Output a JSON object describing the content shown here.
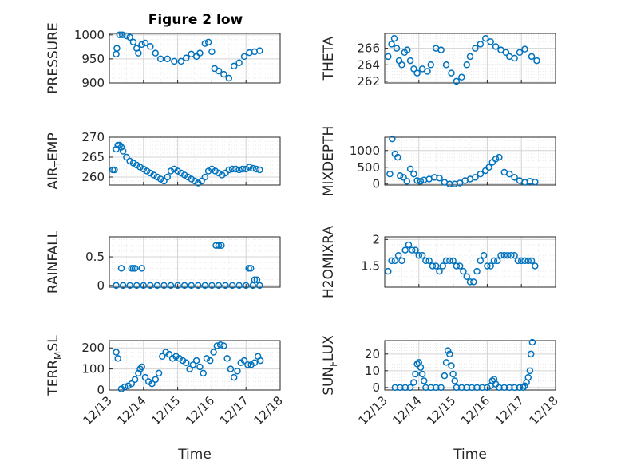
{
  "figure_title": "Figure 2 low",
  "colors": {
    "marker": "#0072BD",
    "axes": "#262626",
    "grid": "#d4d4d4",
    "background": "#ffffff"
  },
  "chart_data": [
    {
      "type": "scatter",
      "ylabel": "PRESSURE",
      "ylim": [
        900,
        1003
      ],
      "yticks": [
        900,
        950,
        1000
      ],
      "xlim": [
        0,
        5
      ],
      "xticks": [],
      "grid": true,
      "marker": "circle",
      "x": [
        0.2,
        0.22,
        0.3,
        0.38,
        0.5,
        0.6,
        0.7,
        0.8,
        0.85,
        0.95,
        1.05,
        1.2,
        1.35,
        1.5,
        1.7,
        1.9,
        2.1,
        2.25,
        2.4,
        2.55,
        2.65,
        2.8,
        2.9,
        3.0,
        3.08,
        3.2,
        3.35,
        3.5,
        3.65,
        3.8,
        3.95,
        4.1,
        4.25,
        4.4
      ],
      "y": [
        960,
        972,
        1000,
        1000,
        998,
        995,
        985,
        972,
        962,
        980,
        983,
        976,
        962,
        950,
        950,
        945,
        945,
        952,
        960,
        955,
        962,
        982,
        985,
        965,
        930,
        925,
        918,
        910,
        935,
        942,
        955,
        963,
        965,
        967
      ]
    },
    {
      "type": "scatter",
      "ylabel": "THETA",
      "ylim": [
        261.8,
        267.8
      ],
      "yticks": [
        262,
        264,
        266
      ],
      "xlim": [
        0,
        5
      ],
      "xticks": [],
      "grid": true,
      "marker": "circle",
      "x": [
        0.1,
        0.2,
        0.28,
        0.35,
        0.42,
        0.5,
        0.58,
        0.66,
        0.75,
        0.85,
        0.95,
        1.1,
        1.25,
        1.35,
        1.5,
        1.65,
        1.8,
        1.95,
        2.1,
        2.25,
        2.4,
        2.5,
        2.65,
        2.8,
        2.95,
        3.1,
        3.25,
        3.4,
        3.55,
        3.65,
        3.8,
        3.95,
        4.1,
        4.3,
        4.45
      ],
      "y": [
        265,
        266.5,
        267.2,
        266,
        264.5,
        264,
        265.5,
        265.8,
        264.5,
        263.5,
        263,
        263.5,
        263.2,
        264,
        266,
        265.8,
        264,
        263,
        262,
        262.5,
        264,
        265,
        266,
        266.5,
        267.2,
        266.8,
        266.2,
        265.8,
        265.5,
        265,
        264.8,
        265.5,
        265.9,
        265,
        264.5
      ]
    },
    {
      "type": "scatter",
      "ylabel": "AIR_TEMP",
      "ylim": [
        258,
        270
      ],
      "yticks": [
        260,
        265,
        270
      ],
      "xlim": [
        0,
        5
      ],
      "xticks": [],
      "grid": true,
      "marker": "circle",
      "x": [
        0.1,
        0.15,
        0.2,
        0.25,
        0.3,
        0.35,
        0.4,
        0.5,
        0.6,
        0.7,
        0.8,
        0.9,
        1.0,
        1.1,
        1.2,
        1.3,
        1.4,
        1.5,
        1.6,
        1.7,
        1.8,
        1.9,
        2.0,
        2.1,
        2.2,
        2.3,
        2.4,
        2.5,
        2.6,
        2.7,
        2.8,
        2.9,
        3.0,
        3.1,
        3.2,
        3.3,
        3.4,
        3.5,
        3.6,
        3.7,
        3.8,
        3.9,
        4.0,
        4.1,
        4.2,
        4.3,
        4.4
      ],
      "y": [
        261.8,
        261.8,
        267,
        268,
        268,
        267.5,
        266.5,
        265,
        264,
        263.5,
        263,
        262.5,
        262,
        261.5,
        261,
        260.5,
        260,
        259.5,
        259,
        260,
        261.5,
        262,
        261.5,
        261,
        260.5,
        260,
        259.5,
        259,
        258.5,
        259,
        260,
        261.5,
        262,
        261.5,
        261,
        260.5,
        261,
        261.8,
        262,
        262,
        261.8,
        262,
        262,
        262.5,
        262.2,
        262,
        261.8
      ]
    },
    {
      "type": "scatter",
      "ylabel": "MIXDEPTH",
      "ylim": [
        -30,
        1400
      ],
      "yticks": [
        0,
        500,
        1000
      ],
      "xlim": [
        0,
        5
      ],
      "xticks": [],
      "grid": true,
      "marker": "circle",
      "x": [
        0.15,
        0.22,
        0.3,
        0.38,
        0.45,
        0.55,
        0.65,
        0.75,
        0.85,
        0.95,
        1.05,
        1.15,
        1.3,
        1.45,
        1.6,
        1.75,
        1.9,
        2.05,
        2.2,
        2.35,
        2.5,
        2.65,
        2.8,
        2.95,
        3.05,
        3.15,
        3.25,
        3.35,
        3.5,
        3.65,
        3.8,
        3.95,
        4.1,
        4.25,
        4.4
      ],
      "y": [
        300,
        1350,
        900,
        800,
        250,
        200,
        80,
        450,
        300,
        100,
        80,
        120,
        150,
        200,
        180,
        50,
        0,
        0,
        30,
        100,
        150,
        200,
        300,
        400,
        500,
        650,
        750,
        800,
        350,
        300,
        200,
        100,
        50,
        80,
        60
      ]
    },
    {
      "type": "scatter",
      "ylabel": "RAINFALL",
      "ylim": [
        -0.03,
        0.85
      ],
      "yticks": [
        0,
        0.5
      ],
      "xlim": [
        0,
        5
      ],
      "xticks": [],
      "grid": true,
      "marker": "circle",
      "x": [
        0.2,
        0.4,
        0.6,
        0.8,
        1.0,
        1.2,
        1.4,
        1.6,
        1.8,
        2.0,
        2.2,
        2.4,
        2.6,
        2.8,
        3.0,
        3.2,
        3.4,
        3.6,
        3.8,
        4.0,
        4.2,
        4.4,
        0.35,
        0.65,
        0.7,
        0.75,
        0.95,
        3.12,
        3.2,
        3.28,
        4.08,
        4.14,
        4.25,
        4.32
      ],
      "y": [
        0,
        0,
        0,
        0,
        0,
        0,
        0,
        0,
        0,
        0,
        0,
        0,
        0,
        0,
        0,
        0,
        0,
        0,
        0,
        0,
        0,
        0,
        0.3,
        0.3,
        0.3,
        0.3,
        0.3,
        0.7,
        0.7,
        0.7,
        0.3,
        0.3,
        0.1,
        0.1
      ]
    },
    {
      "type": "scatter",
      "ylabel": "H2OMIXRA",
      "ylim": [
        1.1,
        2.05
      ],
      "yticks": [
        1.5,
        2
      ],
      "xlim": [
        0,
        5
      ],
      "xticks": [],
      "grid": true,
      "marker": "circle",
      "x": [
        0.1,
        0.2,
        0.3,
        0.4,
        0.5,
        0.6,
        0.7,
        0.8,
        0.9,
        1.0,
        1.1,
        1.2,
        1.3,
        1.4,
        1.5,
        1.6,
        1.7,
        1.8,
        1.9,
        2.0,
        2.1,
        2.2,
        2.3,
        2.4,
        2.5,
        2.6,
        2.7,
        2.8,
        2.9,
        3.0,
        3.1,
        3.2,
        3.3,
        3.4,
        3.5,
        3.6,
        3.7,
        3.8,
        3.9,
        4.0,
        4.1,
        4.2,
        4.3,
        4.4
      ],
      "y": [
        1.4,
        1.6,
        1.6,
        1.7,
        1.6,
        1.8,
        1.9,
        1.8,
        1.8,
        1.7,
        1.7,
        1.6,
        1.6,
        1.5,
        1.5,
        1.4,
        1.5,
        1.6,
        1.6,
        1.6,
        1.5,
        1.5,
        1.4,
        1.3,
        1.2,
        1.2,
        1.4,
        1.6,
        1.7,
        1.5,
        1.5,
        1.6,
        1.6,
        1.7,
        1.7,
        1.7,
        1.7,
        1.7,
        1.6,
        1.6,
        1.6,
        1.6,
        1.6,
        1.5
      ]
    },
    {
      "type": "scatter",
      "ylabel": "TERR_MSL",
      "ylim": [
        0,
        235
      ],
      "yticks": [
        0,
        100,
        200
      ],
      "xlim": [
        0,
        5
      ],
      "xticks": [
        0,
        1,
        2,
        3,
        4,
        5
      ],
      "xticklabels": [
        "12/13",
        "12/14",
        "12/15",
        "12/16",
        "12/17",
        "12/18"
      ],
      "xlabel": "Time",
      "grid": true,
      "marker": "circle",
      "x": [
        0.2,
        0.25,
        0.35,
        0.45,
        0.55,
        0.65,
        0.75,
        0.85,
        0.9,
        0.95,
        1.05,
        1.15,
        1.25,
        1.35,
        1.45,
        1.55,
        1.65,
        1.75,
        1.85,
        1.95,
        2.05,
        2.15,
        2.25,
        2.35,
        2.45,
        2.55,
        2.65,
        2.75,
        2.85,
        2.95,
        3.05,
        3.15,
        3.25,
        3.35,
        3.45,
        3.55,
        3.65,
        3.75,
        3.85,
        3.95,
        4.05,
        4.15,
        4.25,
        4.35,
        4.42
      ],
      "y": [
        180,
        150,
        5,
        15,
        20,
        30,
        50,
        80,
        100,
        110,
        60,
        40,
        30,
        50,
        80,
        160,
        180,
        170,
        150,
        160,
        150,
        140,
        130,
        100,
        120,
        140,
        110,
        80,
        150,
        140,
        180,
        210,
        215,
        210,
        150,
        100,
        60,
        90,
        130,
        140,
        120,
        120,
        130,
        160,
        140
      ]
    },
    {
      "type": "scatter",
      "ylabel": "SUN_FLUX",
      "ylim": [
        -1.5,
        28
      ],
      "yticks": [
        0,
        10,
        20
      ],
      "xlim": [
        0,
        5
      ],
      "xticks": [
        0,
        1,
        2,
        3,
        4,
        5
      ],
      "xticklabels": [
        "12/13",
        "12/14",
        "12/15",
        "12/16",
        "12/17",
        "12/18"
      ],
      "xlabel": "Time",
      "grid": true,
      "marker": "circle",
      "x": [
        0.3,
        0.45,
        0.6,
        0.75,
        0.85,
        0.9,
        0.95,
        1.0,
        1.05,
        1.1,
        1.15,
        1.2,
        1.35,
        1.5,
        1.65,
        1.75,
        1.8,
        1.85,
        1.9,
        1.95,
        2.0,
        2.05,
        2.1,
        2.25,
        2.4,
        2.55,
        2.7,
        2.85,
        3.0,
        3.1,
        3.15,
        3.2,
        3.25,
        3.35,
        3.5,
        3.65,
        3.8,
        3.95,
        4.05,
        4.1,
        4.15,
        4.2,
        4.25,
        4.28,
        4.32
      ],
      "y": [
        0,
        0,
        0,
        0,
        3,
        8,
        14,
        15,
        12,
        8,
        4,
        0,
        0,
        0,
        0,
        7,
        15,
        22,
        20,
        13,
        8,
        4,
        0,
        0,
        0,
        0,
        0,
        0,
        0,
        1,
        4,
        5,
        2,
        0,
        0,
        0,
        0,
        0,
        0,
        1,
        3,
        6,
        10,
        20,
        27
      ]
    }
  ]
}
